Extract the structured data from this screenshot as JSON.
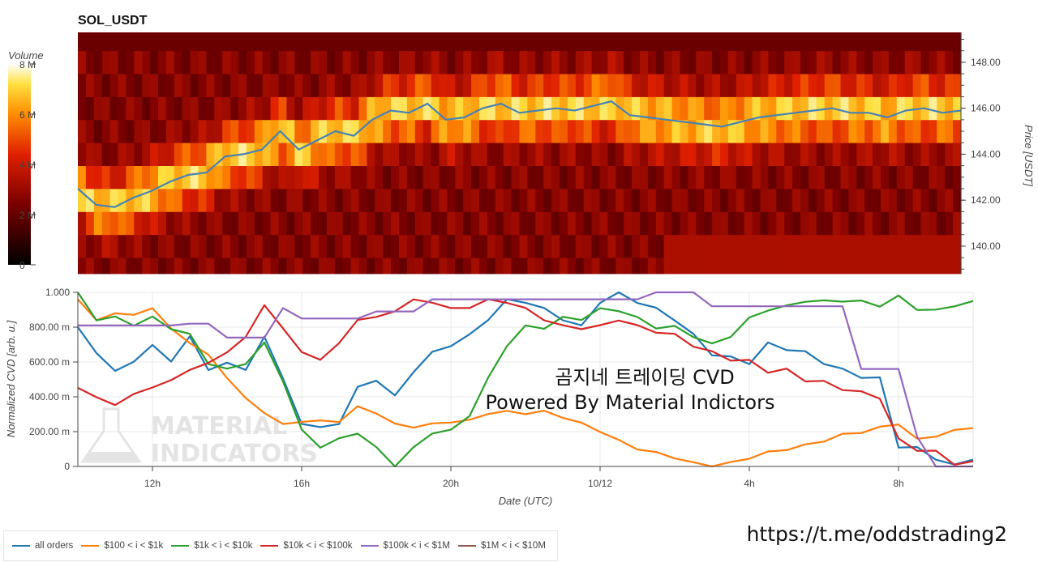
{
  "chart_data": [
    {
      "type": "heatmap",
      "title": "SOL_USDT",
      "colorbar_label": "Volume",
      "colorbar_ticks": [
        "0",
        "2 M",
        "4 M",
        "6 M",
        "8 M"
      ],
      "colorbar_range": [
        0,
        8000000
      ],
      "ylabel": "Price [USDT]",
      "y_ticks": [
        "140.00",
        "142.00",
        "144.00",
        "146.00",
        "148.00"
      ],
      "ylim": [
        138.8,
        149.3
      ],
      "price_bins": [
        139.0,
        140.0,
        141.0,
        142.0,
        143.0,
        144.0,
        145.0,
        146.0,
        147.0,
        148.0,
        149.0
      ],
      "price_series": {
        "name": "price",
        "color": "#4682b4",
        "x": [
          "10:00",
          "10:30",
          "11:00",
          "11:30",
          "12:00",
          "12:30",
          "13:00",
          "13:30",
          "14:00",
          "14:30",
          "15:00",
          "15:30",
          "16:00",
          "16:30",
          "17:00",
          "17:30",
          "18:00",
          "18:30",
          "19:00",
          "19:30",
          "20:00",
          "20:30",
          "21:00",
          "21:30",
          "22:00",
          "22:30",
          "23:00",
          "23:30",
          "00:00",
          "00:30",
          "01:00",
          "01:30",
          "02:00",
          "02:30",
          "03:00",
          "03:30",
          "04:00",
          "04:30",
          "05:00",
          "05:30",
          "06:00",
          "06:30",
          "07:00",
          "07:30",
          "08:00",
          "08:30",
          "09:00",
          "09:30",
          "10:00"
        ],
        "y": [
          142.5,
          141.8,
          141.7,
          142.1,
          142.4,
          142.8,
          143.1,
          143.2,
          143.9,
          144.0,
          144.2,
          145.0,
          144.2,
          144.6,
          145.0,
          144.8,
          145.5,
          145.9,
          145.8,
          146.2,
          145.5,
          145.6,
          146.0,
          146.2,
          145.8,
          145.9,
          146.0,
          145.9,
          146.1,
          146.3,
          145.7,
          145.6,
          145.5,
          145.4,
          145.3,
          145.2,
          145.4,
          145.6,
          145.7,
          145.8,
          145.9,
          146.0,
          145.8,
          145.8,
          145.6,
          145.9,
          146.0,
          145.8,
          145.9
        ]
      }
    },
    {
      "type": "line",
      "xlabel": "Date (UTC)",
      "ylabel": "Normalized CVD [arb. u.]",
      "x_ticks": [
        "12h",
        "16h",
        "20h",
        "10/12",
        "4h",
        "8h"
      ],
      "y_ticks": [
        "0",
        "200.00 m",
        "400.00 m",
        "600.00 m",
        "800.00 m",
        "1.000"
      ],
      "ylim": [
        0,
        1
      ],
      "annotation_lines": [
        "곰지네 트레이딩 CVD",
        "Powered By Material Indictors"
      ],
      "watermark": [
        "MATERIAL",
        "INDICATORS"
      ],
      "x": [
        "10:00",
        "10:30",
        "11:00",
        "11:30",
        "12:00",
        "12:30",
        "13:00",
        "13:30",
        "14:00",
        "14:30",
        "15:00",
        "15:30",
        "16:00",
        "16:30",
        "17:00",
        "17:30",
        "18:00",
        "18:30",
        "19:00",
        "19:30",
        "20:00",
        "20:30",
        "21:00",
        "21:30",
        "22:00",
        "22:30",
        "23:00",
        "23:30",
        "00:00",
        "00:30",
        "01:00",
        "01:30",
        "02:00",
        "02:30",
        "03:00",
        "03:30",
        "04:00",
        "04:30",
        "05:00",
        "05:30",
        "06:00",
        "06:30",
        "07:00",
        "07:30",
        "08:00",
        "08:30",
        "09:00",
        "09:30",
        "10:00"
      ],
      "series": [
        {
          "name": "all orders",
          "color": "#1f77b4",
          "values": [
            0.8,
            0.65,
            0.55,
            0.6,
            0.7,
            0.6,
            0.75,
            0.55,
            0.6,
            0.55,
            0.75,
            0.5,
            0.25,
            0.22,
            0.25,
            0.45,
            0.5,
            0.4,
            0.55,
            0.65,
            0.7,
            0.75,
            0.85,
            0.95,
            0.95,
            0.9,
            0.85,
            0.8,
            0.95,
            1.0,
            0.95,
            0.9,
            0.85,
            0.75,
            0.65,
            0.62,
            0.6,
            0.7,
            0.68,
            0.65,
            0.6,
            0.55,
            0.52,
            0.5,
            0.12,
            0.1,
            0.05,
            0.0,
            0.05
          ]
        },
        {
          "name": "$100 < i < $1k",
          "color": "#ff7f0e",
          "values": [
            0.95,
            0.85,
            0.87,
            0.88,
            0.9,
            0.8,
            0.7,
            0.65,
            0.5,
            0.4,
            0.3,
            0.25,
            0.25,
            0.27,
            0.25,
            0.35,
            0.3,
            0.25,
            0.22,
            0.25,
            0.25,
            0.27,
            0.3,
            0.32,
            0.3,
            0.32,
            0.28,
            0.25,
            0.2,
            0.15,
            0.1,
            0.08,
            0.05,
            0.02,
            0.0,
            0.02,
            0.05,
            0.08,
            0.1,
            0.12,
            0.15,
            0.18,
            0.2,
            0.22,
            0.25,
            0.15,
            0.18,
            0.2,
            0.23
          ]
        },
        {
          "name": "$1k < i < $10k",
          "color": "#2ca02c",
          "values": [
            1.0,
            0.85,
            0.85,
            0.82,
            0.85,
            0.8,
            0.75,
            0.6,
            0.55,
            0.6,
            0.7,
            0.5,
            0.2,
            0.12,
            0.15,
            0.2,
            0.1,
            0.0,
            0.1,
            0.2,
            0.2,
            0.3,
            0.5,
            0.7,
            0.8,
            0.8,
            0.85,
            0.85,
            0.9,
            0.9,
            0.85,
            0.8,
            0.8,
            0.75,
            0.7,
            0.75,
            0.85,
            0.9,
            0.92,
            0.95,
            0.95,
            0.95,
            0.95,
            0.92,
            0.98,
            0.9,
            0.9,
            0.92,
            0.95
          ]
        },
        {
          "name": "$10k < i < $100k",
          "color": "#d62728",
          "values": [
            0.45,
            0.4,
            0.35,
            0.42,
            0.45,
            0.5,
            0.55,
            0.6,
            0.65,
            0.75,
            0.92,
            0.8,
            0.65,
            0.62,
            0.7,
            0.85,
            0.85,
            0.9,
            0.95,
            0.95,
            0.9,
            0.92,
            0.95,
            0.95,
            0.9,
            0.85,
            0.8,
            0.8,
            0.8,
            0.85,
            0.8,
            0.78,
            0.75,
            0.7,
            0.65,
            0.62,
            0.6,
            0.55,
            0.55,
            0.5,
            0.48,
            0.45,
            0.42,
            0.4,
            0.15,
            0.1,
            0.08,
            0.02,
            0.02
          ]
        },
        {
          "name": "$100k < i < $1M",
          "color": "#9467bd",
          "values": [
            0.81,
            0.81,
            0.81,
            0.81,
            0.81,
            0.81,
            0.82,
            0.82,
            0.74,
            0.74,
            0.74,
            0.91,
            0.85,
            0.85,
            0.85,
            0.85,
            0.89,
            0.89,
            0.89,
            0.96,
            0.96,
            0.96,
            0.96,
            0.96,
            0.96,
            0.96,
            0.96,
            0.96,
            0.96,
            0.96,
            0.96,
            1.0,
            1.0,
            1.0,
            0.92,
            0.92,
            0.92,
            0.92,
            0.92,
            0.92,
            0.92,
            0.92,
            0.56,
            0.56,
            0.56,
            0.17,
            0.0,
            0.0,
            0.0
          ]
        },
        {
          "name": "$1M < i < $10M",
          "color": "#8c564b",
          "values": [
            null,
            null,
            null,
            null,
            null,
            null,
            null,
            null,
            null,
            null,
            null,
            null,
            null,
            null,
            null,
            null,
            null,
            null,
            null,
            null,
            null,
            null,
            null,
            null,
            null,
            null,
            null,
            null,
            null,
            null,
            null,
            null,
            null,
            null,
            null,
            null,
            null,
            null,
            null,
            null,
            null,
            null,
            null,
            null,
            null,
            null,
            null,
            null,
            null
          ]
        }
      ]
    }
  ],
  "footer": {
    "url": "https://t.me/oddstrading2"
  }
}
